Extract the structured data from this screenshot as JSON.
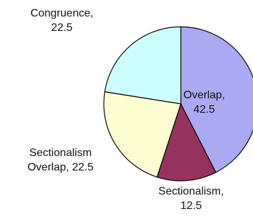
{
  "chart_data": {
    "type": "pie",
    "slices": [
      {
        "name": "Overlap",
        "value": 42.5,
        "color": "#aaaaf2",
        "label_lines": [
          "Overlap,",
          "42.5"
        ]
      },
      {
        "name": "Sectionalism",
        "value": 12.5,
        "color": "#95335e",
        "label_lines": [
          "Sectionalism,",
          "12.5"
        ]
      },
      {
        "name": "Sectionalism Overlap",
        "value": 22.5,
        "color": "#fdfdd2",
        "label_lines": [
          "Sectionalism",
          "Overlap, 22.5"
        ]
      },
      {
        "name": "Congruence",
        "value": 22.5,
        "color": "#cdfefe",
        "label_lines": [
          "Congruence,",
          "22.5"
        ]
      }
    ],
    "start_angle": "12 o'clock",
    "direction": "clockwise",
    "legend": "none"
  }
}
